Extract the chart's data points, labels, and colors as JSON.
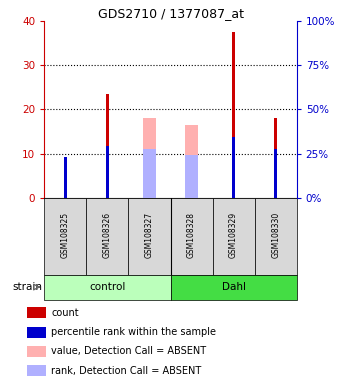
{
  "title": "GDS2710 / 1377087_at",
  "samples": [
    "GSM108325",
    "GSM108326",
    "GSM108327",
    "GSM108328",
    "GSM108329",
    "GSM108330"
  ],
  "groups": [
    "control",
    "control",
    "control",
    "Dahl",
    "Dahl",
    "Dahl"
  ],
  "group_colors": {
    "control": "#bbffbb",
    "Dahl": "#44dd44"
  },
  "red_values": [
    8.0,
    23.5,
    null,
    null,
    37.5,
    18.0
  ],
  "blue_values": [
    9.2,
    11.8,
    null,
    null,
    13.8,
    11.0
  ],
  "pink_values": [
    null,
    null,
    18.0,
    16.5,
    null,
    null
  ],
  "lavender_values": [
    null,
    null,
    11.0,
    9.7,
    null,
    null
  ],
  "ylim": [
    0,
    40
  ],
  "yticks_left": [
    0,
    10,
    20,
    30,
    40
  ],
  "yticks_right": [
    0,
    25,
    50,
    75,
    100
  ],
  "ylabel_left_color": "#cc0000",
  "ylabel_right_color": "#0000cc",
  "red_color": "#cc0000",
  "blue_color": "#0000cc",
  "pink_color": "#ffb0b0",
  "lavender_color": "#b0b0ff",
  "bg_color": "#d8d8d8",
  "plot_bg": "#ffffff",
  "legend_items": [
    {
      "color": "#cc0000",
      "label": "count"
    },
    {
      "color": "#0000cc",
      "label": "percentile rank within the sample"
    },
    {
      "color": "#ffb0b0",
      "label": "value, Detection Call = ABSENT"
    },
    {
      "color": "#b0b0ff",
      "label": "rank, Detection Call = ABSENT"
    }
  ]
}
